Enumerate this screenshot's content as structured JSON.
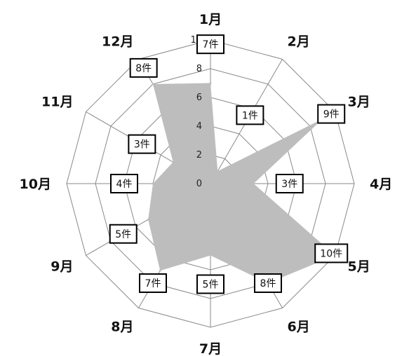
{
  "chart_data": {
    "type": "radar",
    "categories": [
      "1月",
      "2月",
      "3月",
      "4月",
      "5月",
      "6月",
      "7月",
      "8月",
      "9月",
      "10月",
      "11月",
      "12月"
    ],
    "values": [
      7,
      1,
      9,
      3,
      10,
      8,
      5,
      7,
      5,
      4,
      3,
      8
    ],
    "data_labels": [
      "7件",
      "1件",
      "9件",
      "3件",
      "10件",
      "8件",
      "5件",
      "7件",
      "5件",
      "4件",
      "3件",
      "8件"
    ],
    "ticks": [
      "0",
      "2",
      "4",
      "6",
      "8",
      "10"
    ],
    "range": [
      0,
      10
    ],
    "grid": true,
    "legend": "none",
    "fill_color": "#bdbdbd",
    "grid_color": "#8a8a8a"
  }
}
